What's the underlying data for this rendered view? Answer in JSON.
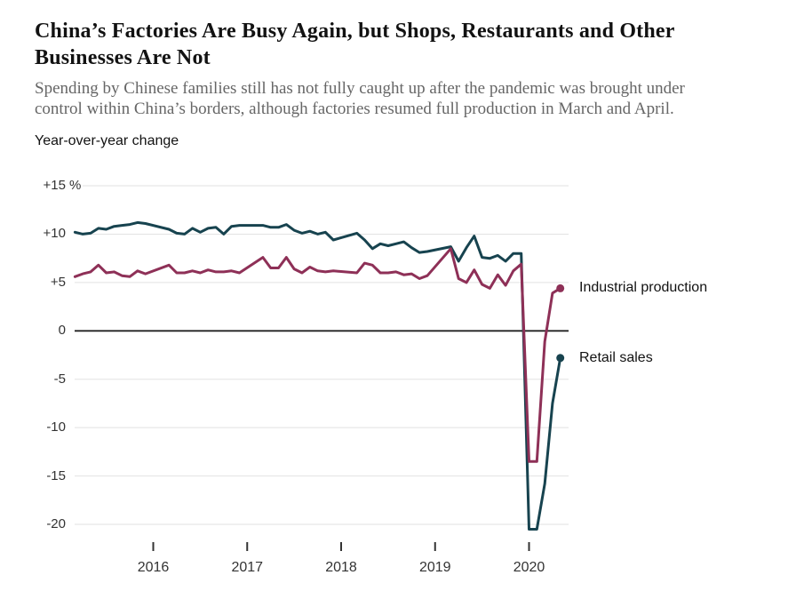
{
  "header": {
    "title_lines": [
      "China’s Factories Are Busy Again, but Shops, Restaurants and Other",
      "Businesses Are Not"
    ],
    "subtitle_lines": [
      "Spending by Chinese families still has not fully caught up after the pandemic was brought under",
      "control within China’s borders, although factories resumed full production in March and April."
    ],
    "axis_note": "Year-over-year change"
  },
  "colors": {
    "industrial_production": "#8e3057",
    "retail_sales": "#17434f",
    "grid_line": "#e2e2e2",
    "zero_line": "#222222",
    "axis_text": "#333333",
    "title_text": "#121212",
    "subtitle_text": "#666666"
  },
  "chart_data": {
    "type": "line",
    "title": "Year-over-year change",
    "unit": "%",
    "legend_position": "right-of-line-ends",
    "grid": true,
    "y_axis": {
      "ylim": [
        -22,
        16
      ],
      "ticks": [
        {
          "label": "+15",
          "value": 15,
          "unit": "%"
        },
        {
          "label": "+10",
          "value": 10
        },
        {
          "label": "+5",
          "value": 5
        },
        {
          "label": "0",
          "value": 0
        },
        {
          "label": "-5",
          "value": -5
        },
        {
          "label": "-10",
          "value": -10
        },
        {
          "label": "-15",
          "value": -15
        },
        {
          "label": "-20",
          "value": -20
        }
      ]
    },
    "x_axis": {
      "ticks": [
        {
          "label": "2016",
          "value": 2016
        },
        {
          "label": "2017",
          "value": 2017
        },
        {
          "label": "2018",
          "value": 2018
        },
        {
          "label": "2019",
          "value": 2019
        },
        {
          "label": "2020",
          "value": 2020
        }
      ]
    },
    "series": [
      {
        "name": "Industrial production",
        "color": "#8e3057",
        "points": [
          [
            2015.167,
            5.6
          ],
          [
            2015.25,
            5.9
          ],
          [
            2015.333,
            6.1
          ],
          [
            2015.417,
            6.8
          ],
          [
            2015.5,
            6.0
          ],
          [
            2015.583,
            6.1
          ],
          [
            2015.667,
            5.7
          ],
          [
            2015.75,
            5.6
          ],
          [
            2015.833,
            6.2
          ],
          [
            2015.917,
            5.9
          ],
          [
            2016.167,
            6.8
          ],
          [
            2016.25,
            6.0
          ],
          [
            2016.333,
            6.0
          ],
          [
            2016.417,
            6.2
          ],
          [
            2016.5,
            6.0
          ],
          [
            2016.583,
            6.3
          ],
          [
            2016.667,
            6.1
          ],
          [
            2016.75,
            6.1
          ],
          [
            2016.833,
            6.2
          ],
          [
            2016.917,
            6.0
          ],
          [
            2017.167,
            7.6
          ],
          [
            2017.25,
            6.5
          ],
          [
            2017.333,
            6.5
          ],
          [
            2017.417,
            7.6
          ],
          [
            2017.5,
            6.4
          ],
          [
            2017.583,
            6.0
          ],
          [
            2017.667,
            6.6
          ],
          [
            2017.75,
            6.2
          ],
          [
            2017.833,
            6.1
          ],
          [
            2017.917,
            6.2
          ],
          [
            2018.167,
            6.0
          ],
          [
            2018.25,
            7.0
          ],
          [
            2018.333,
            6.8
          ],
          [
            2018.417,
            6.0
          ],
          [
            2018.5,
            6.0
          ],
          [
            2018.583,
            6.1
          ],
          [
            2018.667,
            5.8
          ],
          [
            2018.75,
            5.9
          ],
          [
            2018.833,
            5.4
          ],
          [
            2018.917,
            5.7
          ],
          [
            2019.167,
            8.5
          ],
          [
            2019.25,
            5.4
          ],
          [
            2019.333,
            5.0
          ],
          [
            2019.417,
            6.3
          ],
          [
            2019.5,
            4.8
          ],
          [
            2019.583,
            4.4
          ],
          [
            2019.667,
            5.8
          ],
          [
            2019.75,
            4.7
          ],
          [
            2019.833,
            6.2
          ],
          [
            2019.917,
            6.9
          ],
          [
            2020.0,
            -13.5
          ],
          [
            2020.083,
            -13.5
          ],
          [
            2020.167,
            -1.1
          ],
          [
            2020.25,
            3.9
          ],
          [
            2020.333,
            4.4
          ]
        ]
      },
      {
        "name": "Retail sales",
        "color": "#17434f",
        "points": [
          [
            2015.167,
            10.2
          ],
          [
            2015.25,
            10.0
          ],
          [
            2015.333,
            10.1
          ],
          [
            2015.417,
            10.6
          ],
          [
            2015.5,
            10.5
          ],
          [
            2015.583,
            10.8
          ],
          [
            2015.667,
            10.9
          ],
          [
            2015.75,
            11.0
          ],
          [
            2015.833,
            11.2
          ],
          [
            2015.917,
            11.1
          ],
          [
            2016.167,
            10.5
          ],
          [
            2016.25,
            10.1
          ],
          [
            2016.333,
            10.0
          ],
          [
            2016.417,
            10.6
          ],
          [
            2016.5,
            10.2
          ],
          [
            2016.583,
            10.6
          ],
          [
            2016.667,
            10.7
          ],
          [
            2016.75,
            10.0
          ],
          [
            2016.833,
            10.8
          ],
          [
            2016.917,
            10.9
          ],
          [
            2017.167,
            10.9
          ],
          [
            2017.25,
            10.7
          ],
          [
            2017.333,
            10.7
          ],
          [
            2017.417,
            11.0
          ],
          [
            2017.5,
            10.4
          ],
          [
            2017.583,
            10.1
          ],
          [
            2017.667,
            10.3
          ],
          [
            2017.75,
            10.0
          ],
          [
            2017.833,
            10.2
          ],
          [
            2017.917,
            9.4
          ],
          [
            2018.167,
            10.1
          ],
          [
            2018.25,
            9.4
          ],
          [
            2018.333,
            8.5
          ],
          [
            2018.417,
            9.0
          ],
          [
            2018.5,
            8.8
          ],
          [
            2018.583,
            9.0
          ],
          [
            2018.667,
            9.2
          ],
          [
            2018.75,
            8.6
          ],
          [
            2018.833,
            8.1
          ],
          [
            2018.917,
            8.2
          ],
          [
            2019.167,
            8.7
          ],
          [
            2019.25,
            7.2
          ],
          [
            2019.333,
            8.6
          ],
          [
            2019.417,
            9.8
          ],
          [
            2019.5,
            7.6
          ],
          [
            2019.583,
            7.5
          ],
          [
            2019.667,
            7.8
          ],
          [
            2019.75,
            7.2
          ],
          [
            2019.833,
            8.0
          ],
          [
            2019.917,
            8.0
          ],
          [
            2020.0,
            -20.5
          ],
          [
            2020.083,
            -20.5
          ],
          [
            2020.167,
            -15.8
          ],
          [
            2020.25,
            -7.5
          ],
          [
            2020.333,
            -2.8
          ]
        ]
      }
    ]
  }
}
